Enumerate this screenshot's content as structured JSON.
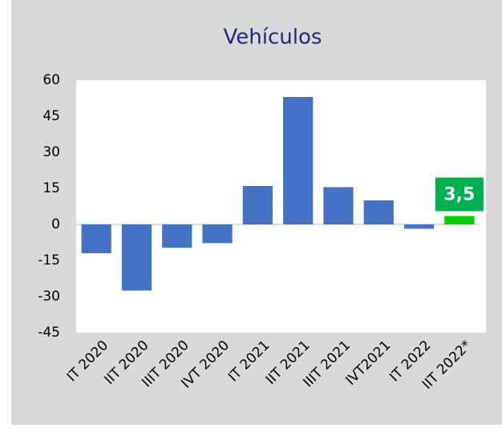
{
  "chart_data": {
    "type": "bar",
    "title": "Vehículos",
    "categories": [
      "IT 2020",
      "IIT 2020",
      "IIIT 2020",
      "IVT 2020",
      "IT 2021",
      "IIT 2021",
      "IIIT 2021",
      "IVT2021",
      "IT 2022",
      "IIT 2022*"
    ],
    "values": [
      -12,
      -27.5,
      -9.7,
      -7.8,
      16,
      53,
      15.5,
      10,
      -1.8,
      3.5
    ],
    "value_labels": [
      null,
      null,
      null,
      null,
      null,
      null,
      null,
      null,
      null,
      "3,5"
    ],
    "colors": [
      "#4472c4",
      "#4472c4",
      "#4472c4",
      "#4472c4",
      "#4472c4",
      "#4472c4",
      "#4472c4",
      "#4472c4",
      "#4472c4",
      "#00d000"
    ],
    "label_color": "#00b050",
    "ylim": [
      -45,
      60
    ],
    "yticks": [
      -45,
      -30,
      -15,
      0,
      15,
      30,
      45,
      60
    ],
    "grid": false
  }
}
